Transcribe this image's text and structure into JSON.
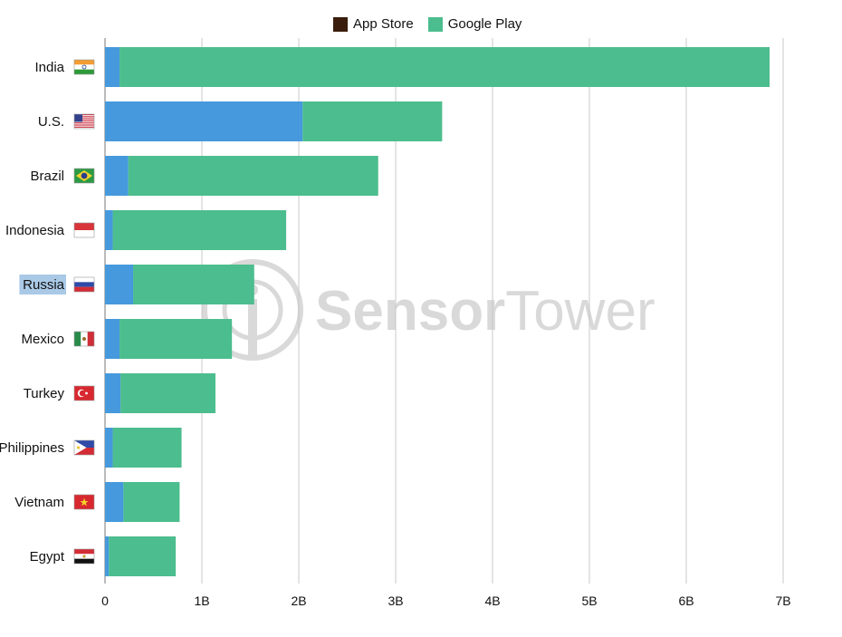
{
  "chart_data": {
    "type": "bar",
    "orientation": "horizontal",
    "stacked": true,
    "categories": [
      "India",
      "U.S.",
      "Brazil",
      "Indonesia",
      "Russia",
      "Mexico",
      "Turkey",
      "Philippines",
      "Vietnam",
      "Egypt"
    ],
    "series": [
      {
        "name": "App Store",
        "values": [
          0.15,
          2.04,
          0.24,
          0.08,
          0.29,
          0.15,
          0.16,
          0.08,
          0.19,
          0.04
        ]
      },
      {
        "name": "Google Play",
        "values": [
          6.71,
          1.44,
          2.58,
          1.79,
          1.25,
          1.16,
          0.98,
          0.71,
          0.58,
          0.69
        ]
      }
    ],
    "xlim": [
      0,
      7
    ],
    "x_ticks": [
      "0",
      "1B",
      "2B",
      "3B",
      "4B",
      "5B",
      "6B",
      "7B"
    ],
    "grid": "vertical",
    "legend_position": "top-center",
    "highlighted_category": "Russia",
    "title": "",
    "xlabel": "",
    "ylabel": ""
  },
  "legend": {
    "app_store_label": "App Store",
    "google_play_label": "Google Play"
  },
  "colors": {
    "legend_app_store": "#3a1d0c",
    "app_store_bar": "#4599dc",
    "google_play": "#4cbd8e",
    "grid": "#c8c8c8",
    "highlight": "#a9c9e6",
    "watermark": "#d9d9d9"
  },
  "watermark": {
    "text_bold": "Sensor",
    "text_light": "Tower"
  },
  "flags": [
    "india-flag",
    "us-flag",
    "brazil-flag",
    "indonesia-flag",
    "russia-flag",
    "mexico-flag",
    "turkey-flag",
    "philippines-flag",
    "vietnam-flag",
    "egypt-flag"
  ]
}
